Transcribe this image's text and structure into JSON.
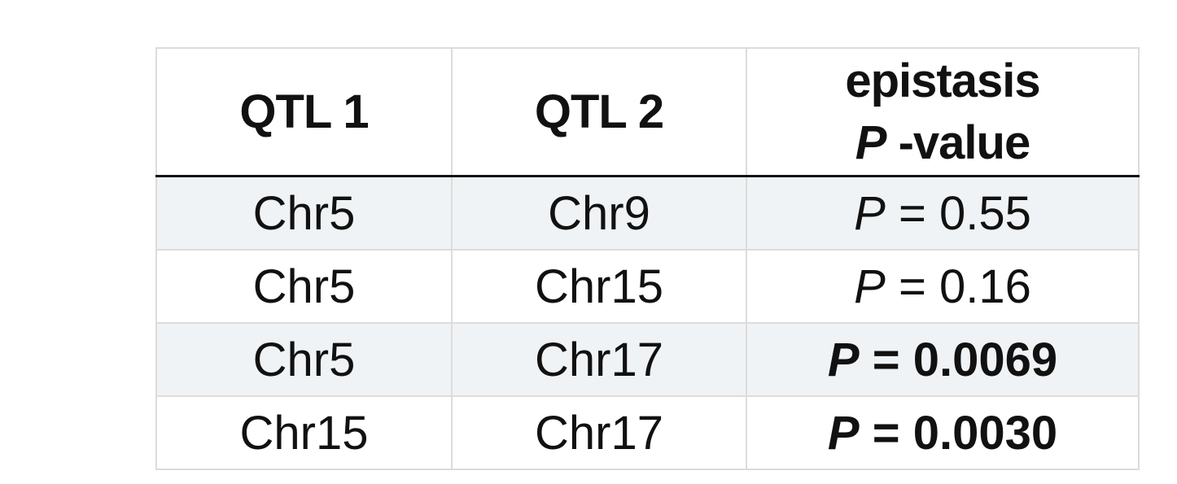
{
  "table": {
    "headers": {
      "qtl1": "QTL 1",
      "qtl2": "QTL 2",
      "epistasis_line1": "epistasis",
      "epistasis_p": "P",
      "epistasis_rest": " -value"
    },
    "rows": [
      {
        "qtl1": "Chr5",
        "qtl2": "Chr9",
        "p_symbol": "P",
        "p_rest": " = 0.55",
        "significant": false
      },
      {
        "qtl1": "Chr5",
        "qtl2": "Chr15",
        "p_symbol": "P",
        "p_rest": " = 0.16",
        "significant": false
      },
      {
        "qtl1": "Chr5",
        "qtl2": "Chr17",
        "p_symbol": "P",
        "p_rest": " = 0.0069",
        "significant": true
      },
      {
        "qtl1": "Chr15",
        "qtl2": "Chr17",
        "p_symbol": "P",
        "p_rest": " = 0.0030",
        "significant": true
      }
    ]
  },
  "colors": {
    "shaded_row": "#f0f3f5",
    "grid_line": "#dcdcdc",
    "header_rule": "#111111"
  }
}
